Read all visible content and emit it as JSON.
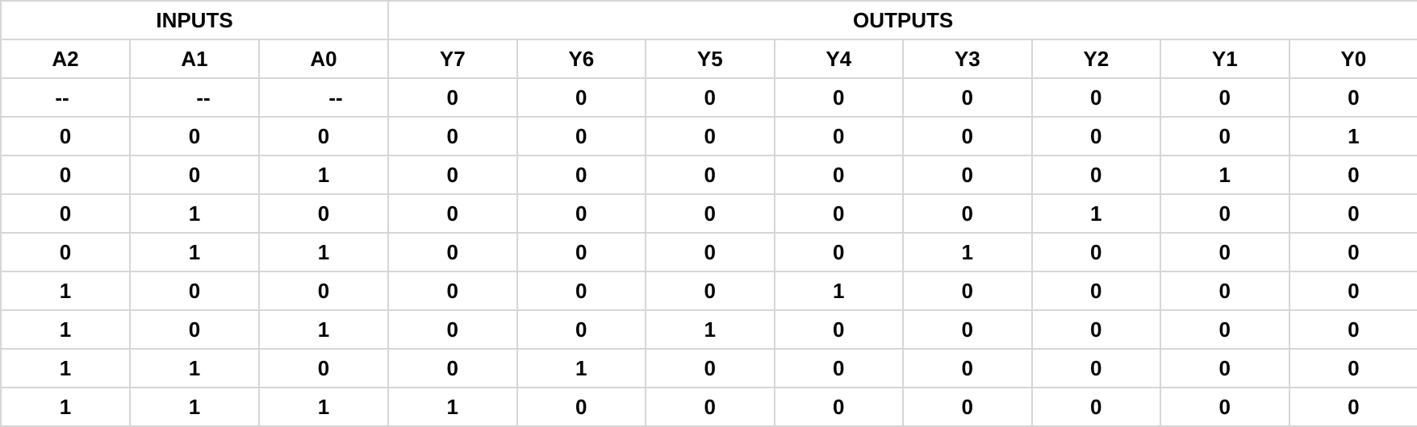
{
  "groups": {
    "inputs": "INPUTS",
    "outputs": "OUTPUTS"
  },
  "columns": [
    "A2",
    "A1",
    "A0",
    "Y7",
    "Y6",
    "Y5",
    "Y4",
    "Y3",
    "Y2",
    "Y1",
    "Y0"
  ],
  "rows": [
    [
      "--",
      "--",
      "--",
      "0",
      "0",
      "0",
      "0",
      "0",
      "0",
      "0",
      "0"
    ],
    [
      "0",
      "0",
      "0",
      "0",
      "0",
      "0",
      "0",
      "0",
      "0",
      "0",
      "1"
    ],
    [
      "0",
      "0",
      "1",
      "0",
      "0",
      "0",
      "0",
      "0",
      "0",
      "1",
      "0"
    ],
    [
      "0",
      "1",
      "0",
      "0",
      "0",
      "0",
      "0",
      "0",
      "1",
      "0",
      "0"
    ],
    [
      "0",
      "1",
      "1",
      "0",
      "0",
      "0",
      "0",
      "1",
      "0",
      "0",
      "0"
    ],
    [
      "1",
      "0",
      "0",
      "0",
      "0",
      "0",
      "1",
      "0",
      "0",
      "0",
      "0"
    ],
    [
      "1",
      "0",
      "1",
      "0",
      "0",
      "1",
      "0",
      "0",
      "0",
      "0",
      "0"
    ],
    [
      "1",
      "1",
      "0",
      "0",
      "1",
      "0",
      "0",
      "0",
      "0",
      "0",
      "0"
    ],
    [
      "1",
      "1",
      "1",
      "1",
      "0",
      "0",
      "0",
      "0",
      "0",
      "0",
      "0"
    ]
  ],
  "colors": {
    "gridline": "#d6d6d6",
    "text": "#000000",
    "background": "#ffffff"
  }
}
